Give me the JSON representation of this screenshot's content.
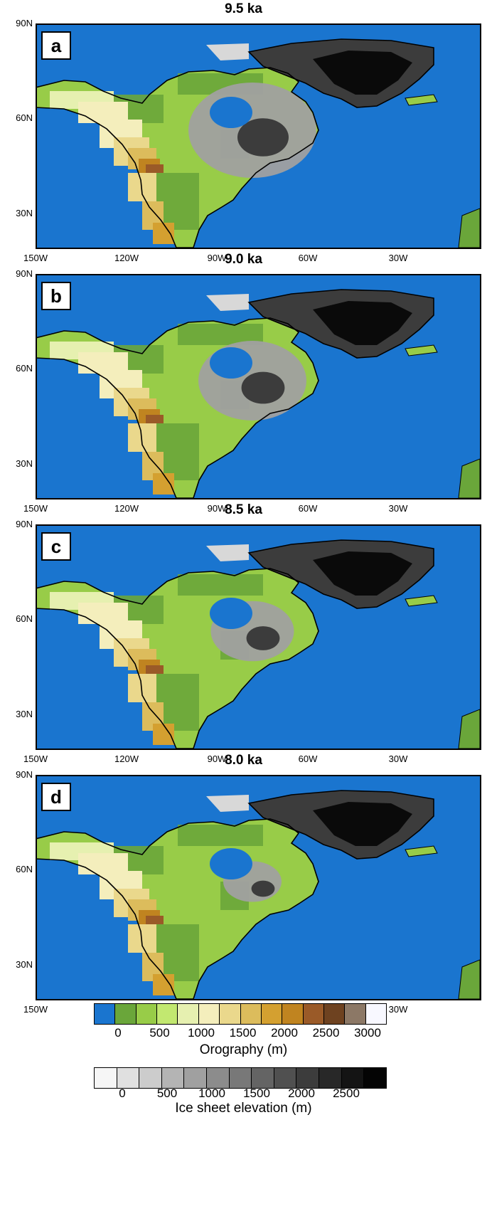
{
  "panels": [
    {
      "title": "9.5 ka",
      "letter": "a",
      "ice_extent": 1.0
    },
    {
      "title": "9.0 ka",
      "letter": "b",
      "ice_extent": 0.8
    },
    {
      "title": "8.5 ka",
      "letter": "c",
      "ice_extent": 0.55
    },
    {
      "title": "8.0 ka",
      "letter": "d",
      "ice_extent": 0.3
    }
  ],
  "lat_labels": [
    "90N",
    "60N",
    "30N"
  ],
  "lon_labels": [
    "150W",
    "120W",
    "90W",
    "60W",
    "30W"
  ],
  "orography_colorbar": {
    "title": "Orography (m)",
    "labels": [
      "0",
      "500",
      "1000",
      "1500",
      "2000",
      "2500",
      "3000"
    ],
    "colors": [
      "#1a75cf",
      "#6aa63a",
      "#98cc48",
      "#c2e870",
      "#e6f0b0",
      "#f4eebc",
      "#ead88c",
      "#dcbc5c",
      "#d4a030",
      "#c08420",
      "#9a5a28",
      "#6e4220",
      "#8c7866",
      "#f8f8ff"
    ]
  },
  "ice_colorbar": {
    "title": "Ice sheet elevation (m)",
    "labels": [
      "0",
      "500",
      "1000",
      "1500",
      "2000",
      "2500"
    ],
    "colors": [
      "#f6f6f6",
      "#e0e0e0",
      "#cccccc",
      "#b4b4b4",
      "#a0a0a0",
      "#8c8c8c",
      "#787878",
      "#646464",
      "#505050",
      "#3c3c3c",
      "#282828",
      "#141414",
      "#040404"
    ]
  }
}
